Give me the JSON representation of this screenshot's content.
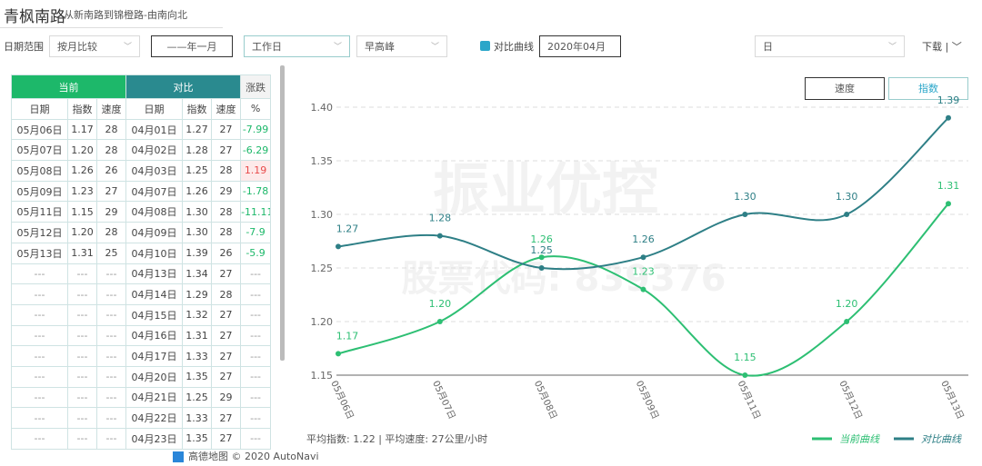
{
  "header": {
    "title": "青枫南路",
    "subtitle": "从新南路到锦橙路-由南向北"
  },
  "toolbar": {
    "date_range_label": "日期范围",
    "compare_mode": "按月比较",
    "period": "——年一月",
    "day_type": "工作日",
    "time_slot": "早高峰",
    "compare_label": "对比曲线",
    "compare_month": "2020年04月",
    "granularity": "日",
    "download": "下载"
  },
  "table": {
    "groups": [
      "当前",
      "对比",
      "涨跌"
    ],
    "columns": [
      "日期",
      "指数",
      "速度",
      "日期",
      "指数",
      "速度",
      "%"
    ],
    "rows": [
      [
        "05月06日",
        "1.17",
        "28",
        "04月01日",
        "1.27",
        "27",
        "-7.99"
      ],
      [
        "05月07日",
        "1.20",
        "28",
        "04月02日",
        "1.28",
        "27",
        "-6.29"
      ],
      [
        "05月08日",
        "1.26",
        "26",
        "04月03日",
        "1.25",
        "28",
        "1.19"
      ],
      [
        "05月09日",
        "1.23",
        "27",
        "04月07日",
        "1.26",
        "29",
        "-1.78"
      ],
      [
        "05月11日",
        "1.15",
        "29",
        "04月08日",
        "1.30",
        "28",
        "-11.11"
      ],
      [
        "05月12日",
        "1.20",
        "28",
        "04月09日",
        "1.30",
        "28",
        "-7.9"
      ],
      [
        "05月13日",
        "1.31",
        "25",
        "04月10日",
        "1.39",
        "26",
        "-5.9"
      ],
      [
        "---",
        "---",
        "---",
        "04月13日",
        "1.34",
        "27",
        "---"
      ],
      [
        "---",
        "---",
        "---",
        "04月14日",
        "1.29",
        "28",
        "---"
      ],
      [
        "---",
        "---",
        "---",
        "04月15日",
        "1.32",
        "27",
        "---"
      ],
      [
        "---",
        "---",
        "---",
        "04月16日",
        "1.31",
        "27",
        "---"
      ],
      [
        "---",
        "---",
        "---",
        "04月17日",
        "1.33",
        "27",
        "---"
      ],
      [
        "---",
        "---",
        "---",
        "04月20日",
        "1.35",
        "27",
        "---"
      ],
      [
        "---",
        "---",
        "---",
        "04月21日",
        "1.25",
        "29",
        "---"
      ],
      [
        "---",
        "---",
        "---",
        "04月22日",
        "1.33",
        "27",
        "---"
      ],
      [
        "---",
        "---",
        "---",
        "04月23日",
        "1.35",
        "27",
        "---"
      ]
    ]
  },
  "chart_controls": {
    "speed": "速度",
    "index": "指数"
  },
  "chart_data": {
    "type": "line",
    "categories": [
      "05月06日",
      "05月07日",
      "05月08日",
      "05月09日",
      "05月11日",
      "05月12日",
      "05月13日"
    ],
    "series": [
      {
        "name": "当前曲线",
        "color": "#2dbf73",
        "values": [
          1.17,
          1.2,
          1.26,
          1.23,
          1.15,
          1.2,
          1.31
        ],
        "value_labels": [
          "1.17",
          "1.20",
          "1.26",
          "1.23",
          "1.15",
          "1.20",
          "1.31"
        ]
      },
      {
        "name": "对比曲线",
        "color": "#2e7f86",
        "values": [
          1.27,
          1.28,
          1.25,
          1.26,
          1.3,
          1.3,
          1.39
        ],
        "value_labels": [
          "1.27",
          "1.28",
          "1.25",
          "1.26",
          "1.30",
          "1.30",
          "1.39"
        ]
      }
    ],
    "ylim": [
      1.15,
      1.4
    ],
    "yticks": [
      1.15,
      {
        "value": 1.2,
        "label": "1.20"
      },
      1.25,
      {
        "value": 1.3,
        "label": "1.30"
      },
      1.35,
      {
        "value": 1.4,
        "label": "1.40"
      }
    ],
    "grid": true,
    "summary": "平均指数: 1.22  |  平均速度: 27公里/小时"
  },
  "watermark": {
    "name": "振业优控",
    "code": "股票代码: 839376"
  },
  "attribution": "高德地图 © 2020 AutoNavi"
}
